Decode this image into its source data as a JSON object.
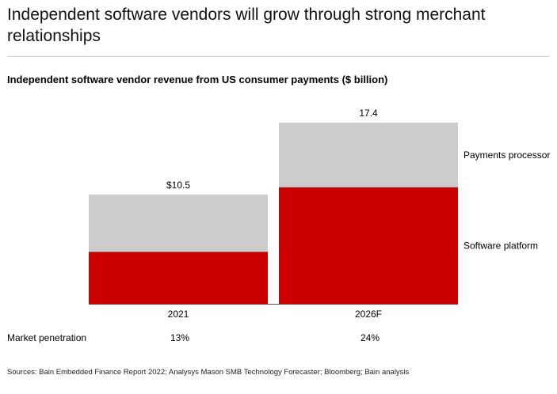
{
  "page": {
    "headline": "Independent software vendors will grow through strong merchant relationships",
    "source": "Sources: Bain Embedded Finance Report 2022; Analysys Mason SMB Technology Forecaster; Bloomberg; Bain analysis"
  },
  "chart_data": {
    "type": "bar",
    "stacked": true,
    "title": "Independent software vendor revenue from US consumer payments ($ billion)",
    "categories": [
      "2021",
      "2026F"
    ],
    "totals": [
      10.5,
      17.4
    ],
    "total_labels": [
      "$10.5",
      "17.4"
    ],
    "series": [
      {
        "name": "Software platform",
        "values": [
          5.0,
          11.2
        ],
        "color": "#cc0000"
      },
      {
        "name": "Payments processor",
        "values": [
          5.5,
          6.2
        ],
        "color": "#cccccc"
      }
    ],
    "ylim": [
      0,
      17.4
    ],
    "grid": false,
    "legend": "right-inline",
    "row_label": "Market penetration",
    "row_values": [
      "13%",
      "24%"
    ]
  }
}
